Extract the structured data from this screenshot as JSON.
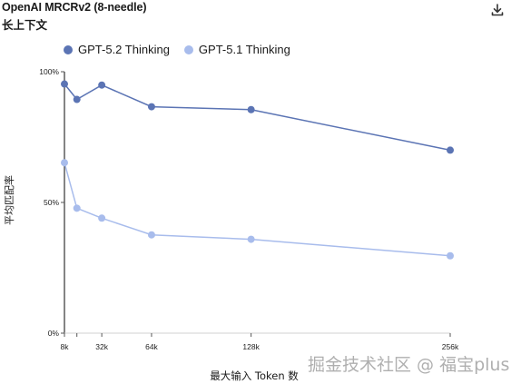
{
  "header": {
    "title": "OpenAI MRCRv2 (8-needle)",
    "subtitle": "长上下文",
    "download_icon": "download-icon"
  },
  "watermark": "掘金技术社区 @ 福宝plus",
  "chart_data": {
    "type": "line",
    "title": "OpenAI MRCRv2 (8-needle)",
    "subtitle": "长上下文",
    "xlabel": "最大输入 Token 数",
    "ylabel": "平均匹配率",
    "x": [
      8,
      16,
      32,
      64,
      128,
      256
    ],
    "x_unit": "k",
    "xticks": [
      8,
      16,
      32,
      64,
      128,
      256
    ],
    "xtick_labels": [
      "8k",
      "",
      "32k",
      "64k",
      "128k",
      "256k"
    ],
    "yticks": [
      0,
      50,
      100
    ],
    "ytick_labels": [
      "0%",
      "50%",
      "100%"
    ],
    "ylim": [
      0,
      100
    ],
    "grid": false,
    "legend_position": "top-left",
    "series": [
      {
        "name": "GPT-5.2 Thinking",
        "color": "#5b74b4",
        "values": [
          95.3,
          89.4,
          94.9,
          86.6,
          85.5,
          70.0
        ]
      },
      {
        "name": "GPT-5.1 Thinking",
        "color": "#a8bcec",
        "values": [
          65.2,
          47.8,
          44.0,
          37.6,
          35.9,
          29.6
        ]
      }
    ]
  }
}
